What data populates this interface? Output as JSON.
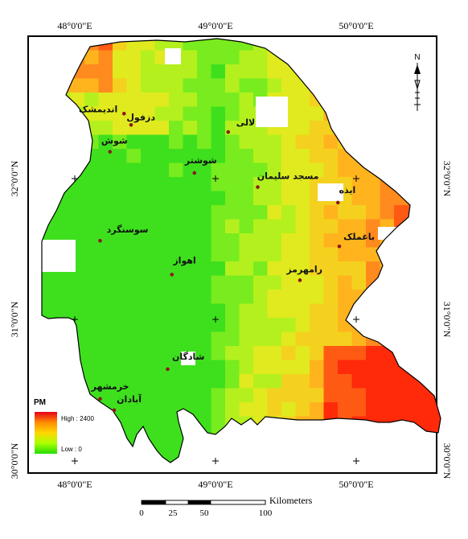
{
  "legend": {
    "title": "PM",
    "high_label": "High : 2400",
    "low_label": "Low : 0",
    "high_value": 2400,
    "low_value": 0,
    "ramp_colors": [
      "#e8001c",
      "#ff8c00",
      "#ffd700",
      "#aaff00",
      "#22dd00"
    ]
  },
  "graticule": {
    "longitudes": [
      "48°0'0\"E",
      "49°0'0\"E",
      "50°0'0\"E"
    ],
    "latitudes": [
      "32°0'0\"N",
      "31°0'0\"N",
      "30°0'0\"N"
    ]
  },
  "north_arrow_label": "N",
  "scale_bar": {
    "unit": "Kilometers",
    "ticks": [
      "0",
      "25",
      "50",
      "100"
    ]
  },
  "cities": [
    {
      "name": "اندیمشک",
      "lon": 48.35,
      "lat": 32.46
    },
    {
      "name": "دزفول",
      "lon": 48.4,
      "lat": 32.38
    },
    {
      "name": "لالی",
      "lon": 49.09,
      "lat": 32.33
    },
    {
      "name": "شوش",
      "lon": 48.25,
      "lat": 32.19
    },
    {
      "name": "شوشتر",
      "lon": 48.85,
      "lat": 32.04
    },
    {
      "name": "مسجد سلیمان",
      "lon": 49.3,
      "lat": 31.94
    },
    {
      "name": "ایذه",
      "lon": 49.87,
      "lat": 31.83
    },
    {
      "name": "سوسنگرد",
      "lon": 48.18,
      "lat": 31.56
    },
    {
      "name": "باغملک",
      "lon": 49.88,
      "lat": 31.52
    },
    {
      "name": "اهواز",
      "lon": 48.69,
      "lat": 31.32
    },
    {
      "name": "رامهرمز",
      "lon": 49.6,
      "lat": 31.28
    },
    {
      "name": "شادگان",
      "lon": 48.66,
      "lat": 30.65
    },
    {
      "name": "خرمشهر",
      "lon": 48.18,
      "lat": 30.44
    },
    {
      "name": "آبادان",
      "lon": 48.28,
      "lat": 30.36
    }
  ],
  "colors": {
    "frame": "#000000",
    "background": "#ffffff",
    "city_marker": "#8b1a1a"
  }
}
